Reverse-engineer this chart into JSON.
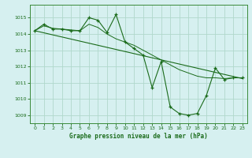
{
  "title": "Graphe pression niveau de la mer (hPa)",
  "bg_color": "#d6f0f0",
  "grid_color": "#b0d8cc",
  "line_color": "#1a6b1a",
  "ylim": [
    1008.5,
    1015.8
  ],
  "yticks": [
    1009,
    1010,
    1011,
    1012,
    1013,
    1014,
    1015
  ],
  "xlim": [
    -0.5,
    23.5
  ],
  "xticks": [
    0,
    1,
    2,
    3,
    4,
    5,
    6,
    7,
    8,
    9,
    10,
    11,
    12,
    13,
    14,
    15,
    16,
    17,
    18,
    19,
    20,
    21,
    22,
    23
  ],
  "jagged_x": [
    0,
    1,
    2,
    3,
    4,
    5,
    6,
    7,
    8,
    9,
    10,
    11,
    12,
    13,
    14,
    15,
    16,
    17,
    18,
    19,
    20,
    21,
    22,
    23
  ],
  "jagged_y": [
    1014.2,
    1014.6,
    1014.3,
    1014.3,
    1014.2,
    1014.2,
    1015.0,
    1014.85,
    1014.1,
    1015.2,
    1013.5,
    1013.1,
    1012.7,
    1010.7,
    1012.3,
    1009.5,
    1009.1,
    1009.0,
    1009.1,
    1010.2,
    1011.9,
    1011.2,
    1011.3,
    1011.3
  ],
  "smooth_x": [
    0,
    1,
    2,
    3,
    4,
    5,
    6,
    7,
    8,
    9,
    10,
    11,
    12,
    13,
    14,
    15,
    16,
    17,
    18,
    19,
    20,
    21,
    22,
    23
  ],
  "smooth_y": [
    1014.2,
    1014.5,
    1014.35,
    1014.3,
    1014.25,
    1014.2,
    1014.6,
    1014.4,
    1014.0,
    1013.7,
    1013.5,
    1013.3,
    1013.0,
    1012.7,
    1012.4,
    1012.1,
    1011.8,
    1011.6,
    1011.4,
    1011.3,
    1011.3,
    1011.25,
    1011.3,
    1011.3
  ],
  "trend_x": [
    0,
    23
  ],
  "trend_y": [
    1014.2,
    1011.25
  ]
}
